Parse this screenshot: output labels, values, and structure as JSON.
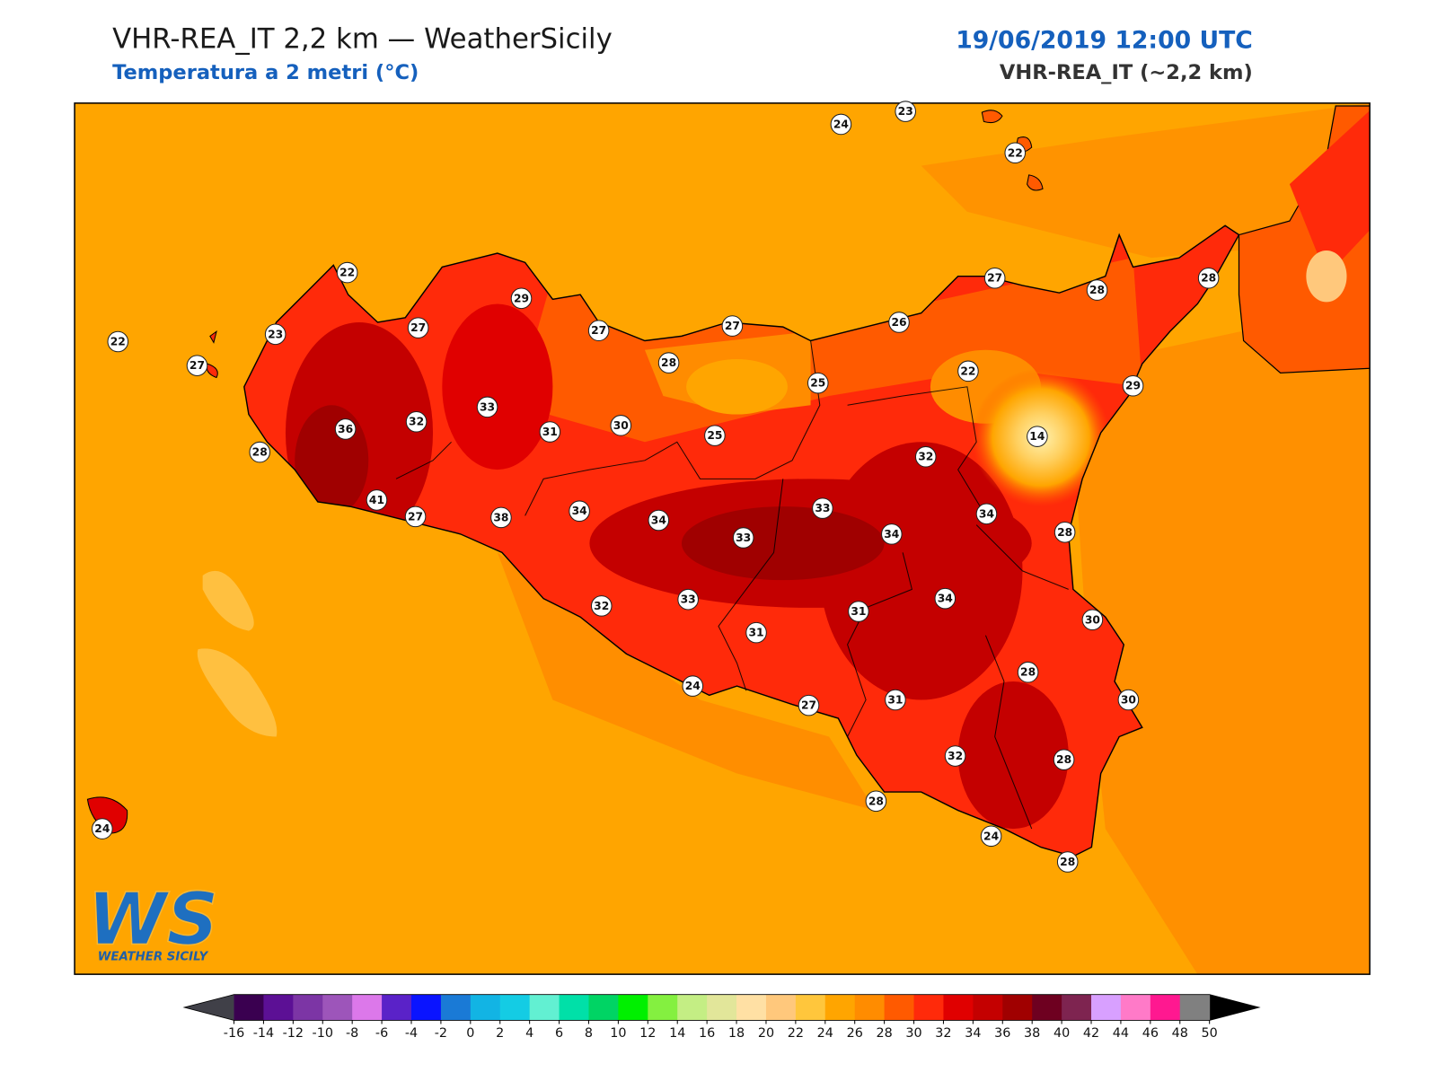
{
  "header": {
    "title": "VHR-REA_IT 2,2 km — WeatherSicily",
    "subtitle": "Temperatura a 2 metri (°C)",
    "date": "19/06/2019 12:00 UTC",
    "model": "VHR-REA_IT (~2,2 km)"
  },
  "stations": [
    24,
    23,
    22,
    22,
    29,
    22,
    23,
    27,
    27,
    27,
    26,
    27,
    28,
    28,
    27,
    28,
    25,
    22,
    29,
    33,
    36,
    32,
    31,
    30,
    25,
    14,
    32,
    28,
    41,
    27,
    38,
    34,
    34,
    33,
    33,
    34,
    34,
    28,
    32,
    33,
    31,
    31,
    34,
    30,
    28,
    24,
    27,
    31,
    30,
    32,
    28,
    28,
    24,
    28,
    24
  ],
  "logo": {
    "text": "WS",
    "caption": "WEATHER SICILY"
  },
  "colorbar": {
    "ticks": [
      -16,
      -14,
      -12,
      -10,
      -8,
      -6,
      -4,
      -2,
      0,
      2,
      4,
      6,
      8,
      10,
      12,
      14,
      16,
      18,
      20,
      22,
      24,
      26,
      28,
      30,
      32,
      34,
      36,
      38,
      40,
      42,
      44,
      46,
      48,
      50
    ],
    "colors": [
      "#3a0050",
      "#5c1095",
      "#7c35a5",
      "#9d55ba",
      "#dc78ea",
      "#5a22c8",
      "#0a14ff",
      "#1a7ad6",
      "#12b4e4",
      "#14cce4",
      "#62f0d2",
      "#00e0a8",
      "#00d464",
      "#00f000",
      "#84f040",
      "#c4ee84",
      "#e2e69a",
      "#ffe0a4",
      "#ffc87c",
      "#ffc63c",
      "#ffa500",
      "#ff8c00",
      "#ff5a00",
      "#ff2a0a",
      "#e00000",
      "#c40000",
      "#a00000",
      "#6e0020",
      "#7e2450",
      "#d8a0ff",
      "#ff7ac8",
      "#ff1890",
      "#808080",
      "#3a3a3a"
    ],
    "under_color": "#404048",
    "over_color": "#000000"
  }
}
